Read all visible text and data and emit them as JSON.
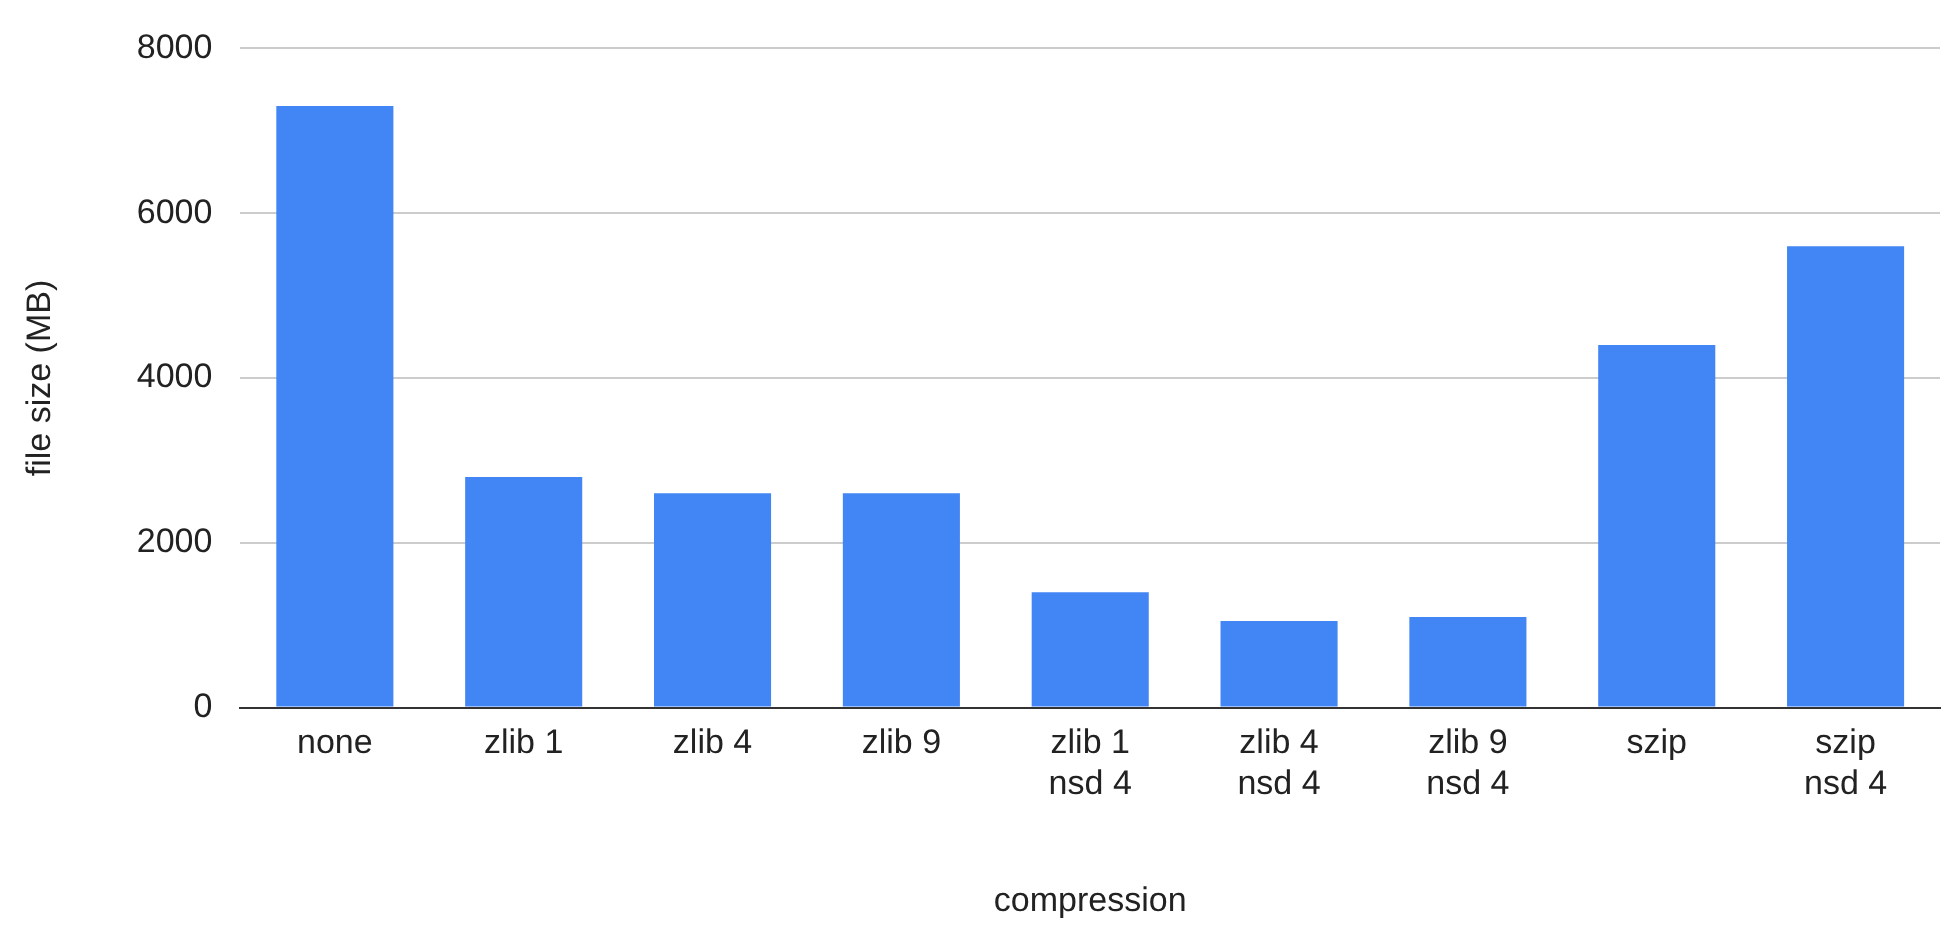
{
  "chart_data": {
    "type": "bar",
    "xlabel": "compression",
    "ylabel": "file size (MB)",
    "categories": [
      "none",
      "zlib 1",
      "zlib 4",
      "zlib 9",
      "zlib 1\nnsd 4",
      "zlib 4\nnsd 4",
      "zlib 9\nnsd 4",
      "szip",
      "szip\nnsd 4"
    ],
    "values": [
      7300,
      2800,
      2600,
      2600,
      1400,
      1050,
      1100,
      4400,
      5600
    ],
    "color": "#4285f4",
    "ylim": [
      0,
      8000
    ],
    "yticks": [
      0,
      2000,
      4000,
      6000,
      8000
    ],
    "grid": "y",
    "legend": false
  }
}
